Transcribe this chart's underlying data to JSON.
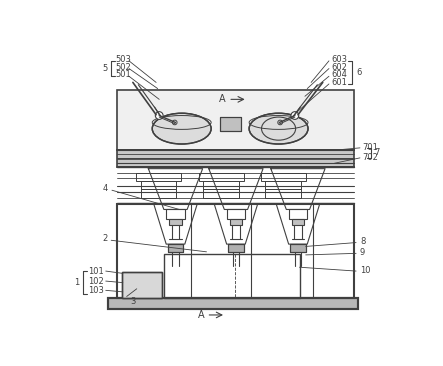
{
  "bg_color": "#ffffff",
  "line_color": "#404040",
  "fig_width": 4.43,
  "fig_height": 3.66,
  "dpi": 100
}
